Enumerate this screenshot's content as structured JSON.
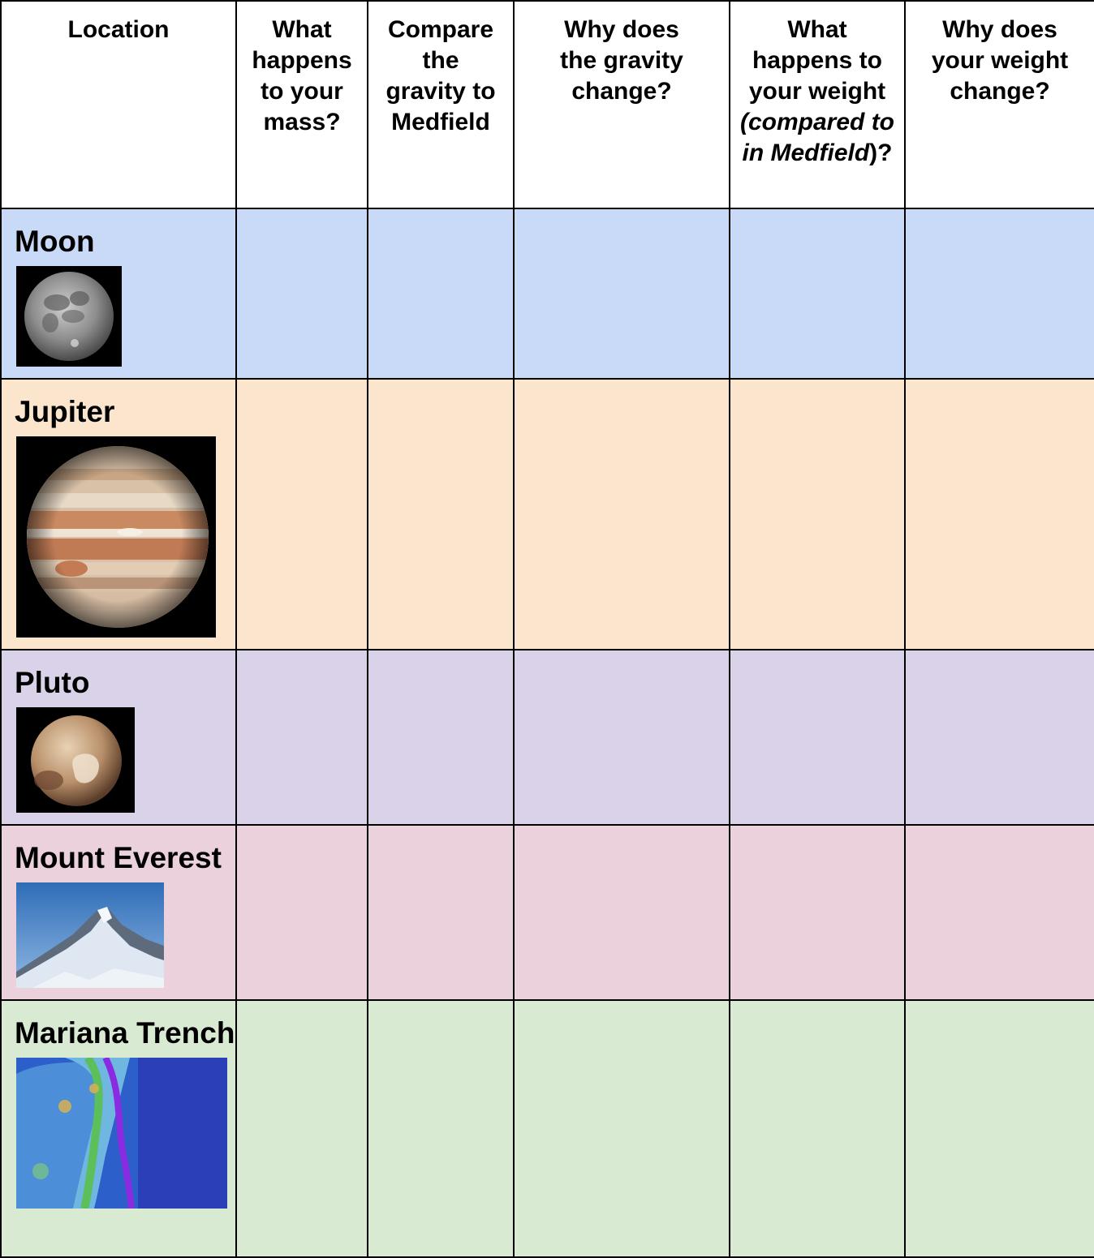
{
  "headers": {
    "location": "Location",
    "mass": "What happens to your mass?",
    "gravity_compare": "Compare the gravity to Medfield",
    "gravity_why": "Why does the gravity change?",
    "weight_what_a": "What happens to your weight ",
    "weight_what_b": "(compared to in Medfield",
    "weight_what_c": ")?",
    "weight_why": "Why does your weight change?"
  },
  "rows": [
    {
      "name": "Moon",
      "color": "#c9daf8",
      "icon": "moon-photo"
    },
    {
      "name": "Jupiter",
      "color": "#fce5cd",
      "icon": "jupiter-photo"
    },
    {
      "name": "Pluto",
      "color": "#d9d2e9",
      "icon": "pluto-photo"
    },
    {
      "name": "Mount Everest",
      "color": "#ead1dc",
      "icon": "mount-everest-photo"
    },
    {
      "name": "Mariana Trench",
      "color": "#d9ead3",
      "icon": "mariana-trench-map"
    }
  ]
}
